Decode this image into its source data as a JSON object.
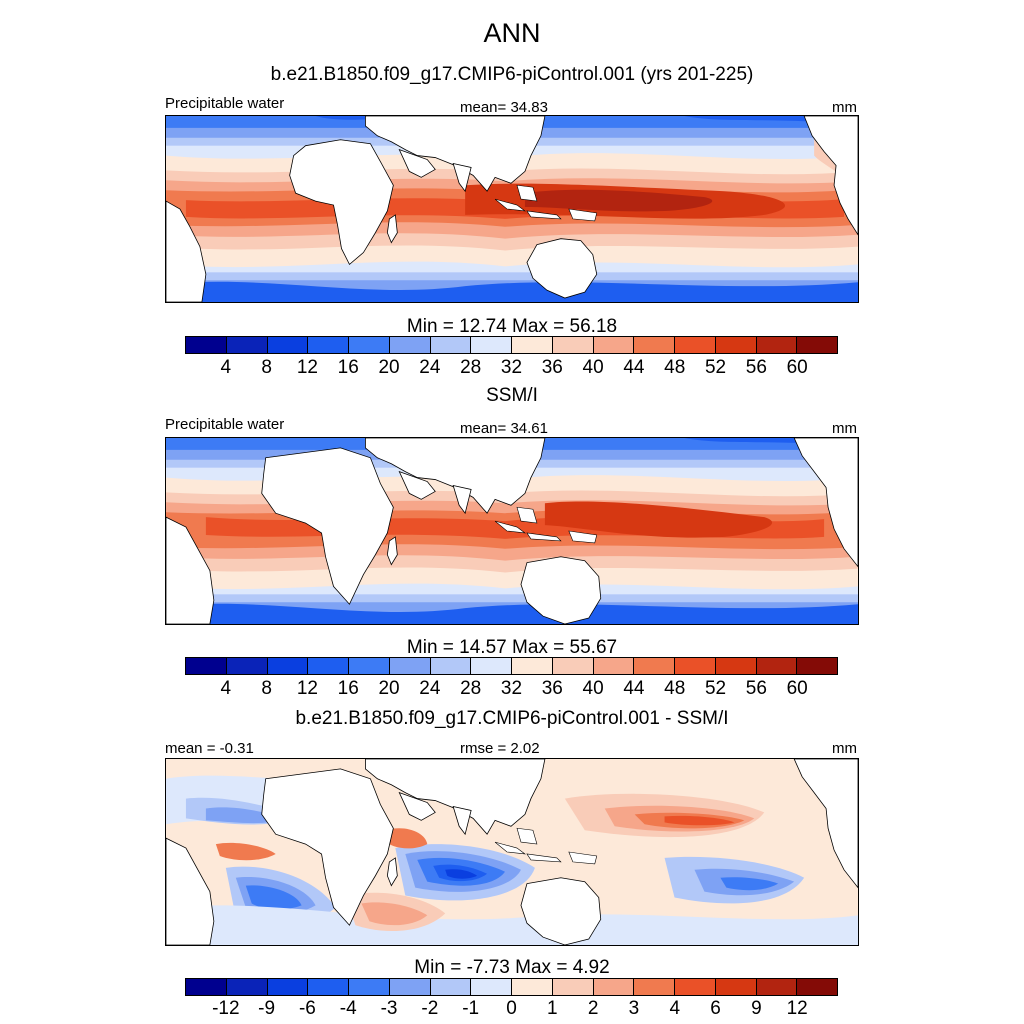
{
  "header": {
    "season": "ANN"
  },
  "panels": [
    {
      "title": "b.e21.B1850.f09_g17.CMIP6-piControl.001 (yrs 201-225)",
      "left_label": "Precipitable water",
      "center_label": "mean=  34.83",
      "units": "mm",
      "minmax": "Min =  12.74 Max =  56.18"
    },
    {
      "title": "SSM/I",
      "left_label": "Precipitable water",
      "center_label": "mean=  34.61",
      "units": "mm",
      "minmax": "Min =  14.57 Max =  55.67"
    },
    {
      "title": "b.e21.B1850.f09_g17.CMIP6-piControl.001 - SSM/I",
      "left_label": "mean =  -0.31",
      "center_label": "rmse =   2.02",
      "units": "mm",
      "minmax": "Min =   -7.73 Max =   4.92"
    }
  ],
  "colorbars": {
    "absolute": {
      "colors": [
        "#00008f",
        "#0a23b8",
        "#0a3fe0",
        "#1e5ef0",
        "#3d7bf5",
        "#7ea2f4",
        "#b2c8f8",
        "#dde8fc",
        "#fde9d9",
        "#f9ccb8",
        "#f6a68a",
        "#f07a4f",
        "#ea5128",
        "#d63812",
        "#b22410",
        "#840b06"
      ],
      "tick_labels": [
        "4",
        "8",
        "12",
        "16",
        "20",
        "24",
        "28",
        "32",
        "36",
        "40",
        "44",
        "48",
        "52",
        "56",
        "60"
      ]
    },
    "difference": {
      "colors": [
        "#00008f",
        "#0a23b8",
        "#0a3fe0",
        "#1e5ef0",
        "#3d7bf5",
        "#7ea2f4",
        "#b2c8f8",
        "#dde8fc",
        "#fde9d9",
        "#f9ccb8",
        "#f6a68a",
        "#f07a4f",
        "#ea5128",
        "#d63812",
        "#b22410",
        "#840b06"
      ],
      "tick_labels": [
        "-12",
        "-9",
        "-6",
        "-4",
        "-3",
        "-2",
        "-1",
        "0",
        "1",
        "2",
        "3",
        "4",
        "6",
        "9",
        "12"
      ]
    }
  }
}
